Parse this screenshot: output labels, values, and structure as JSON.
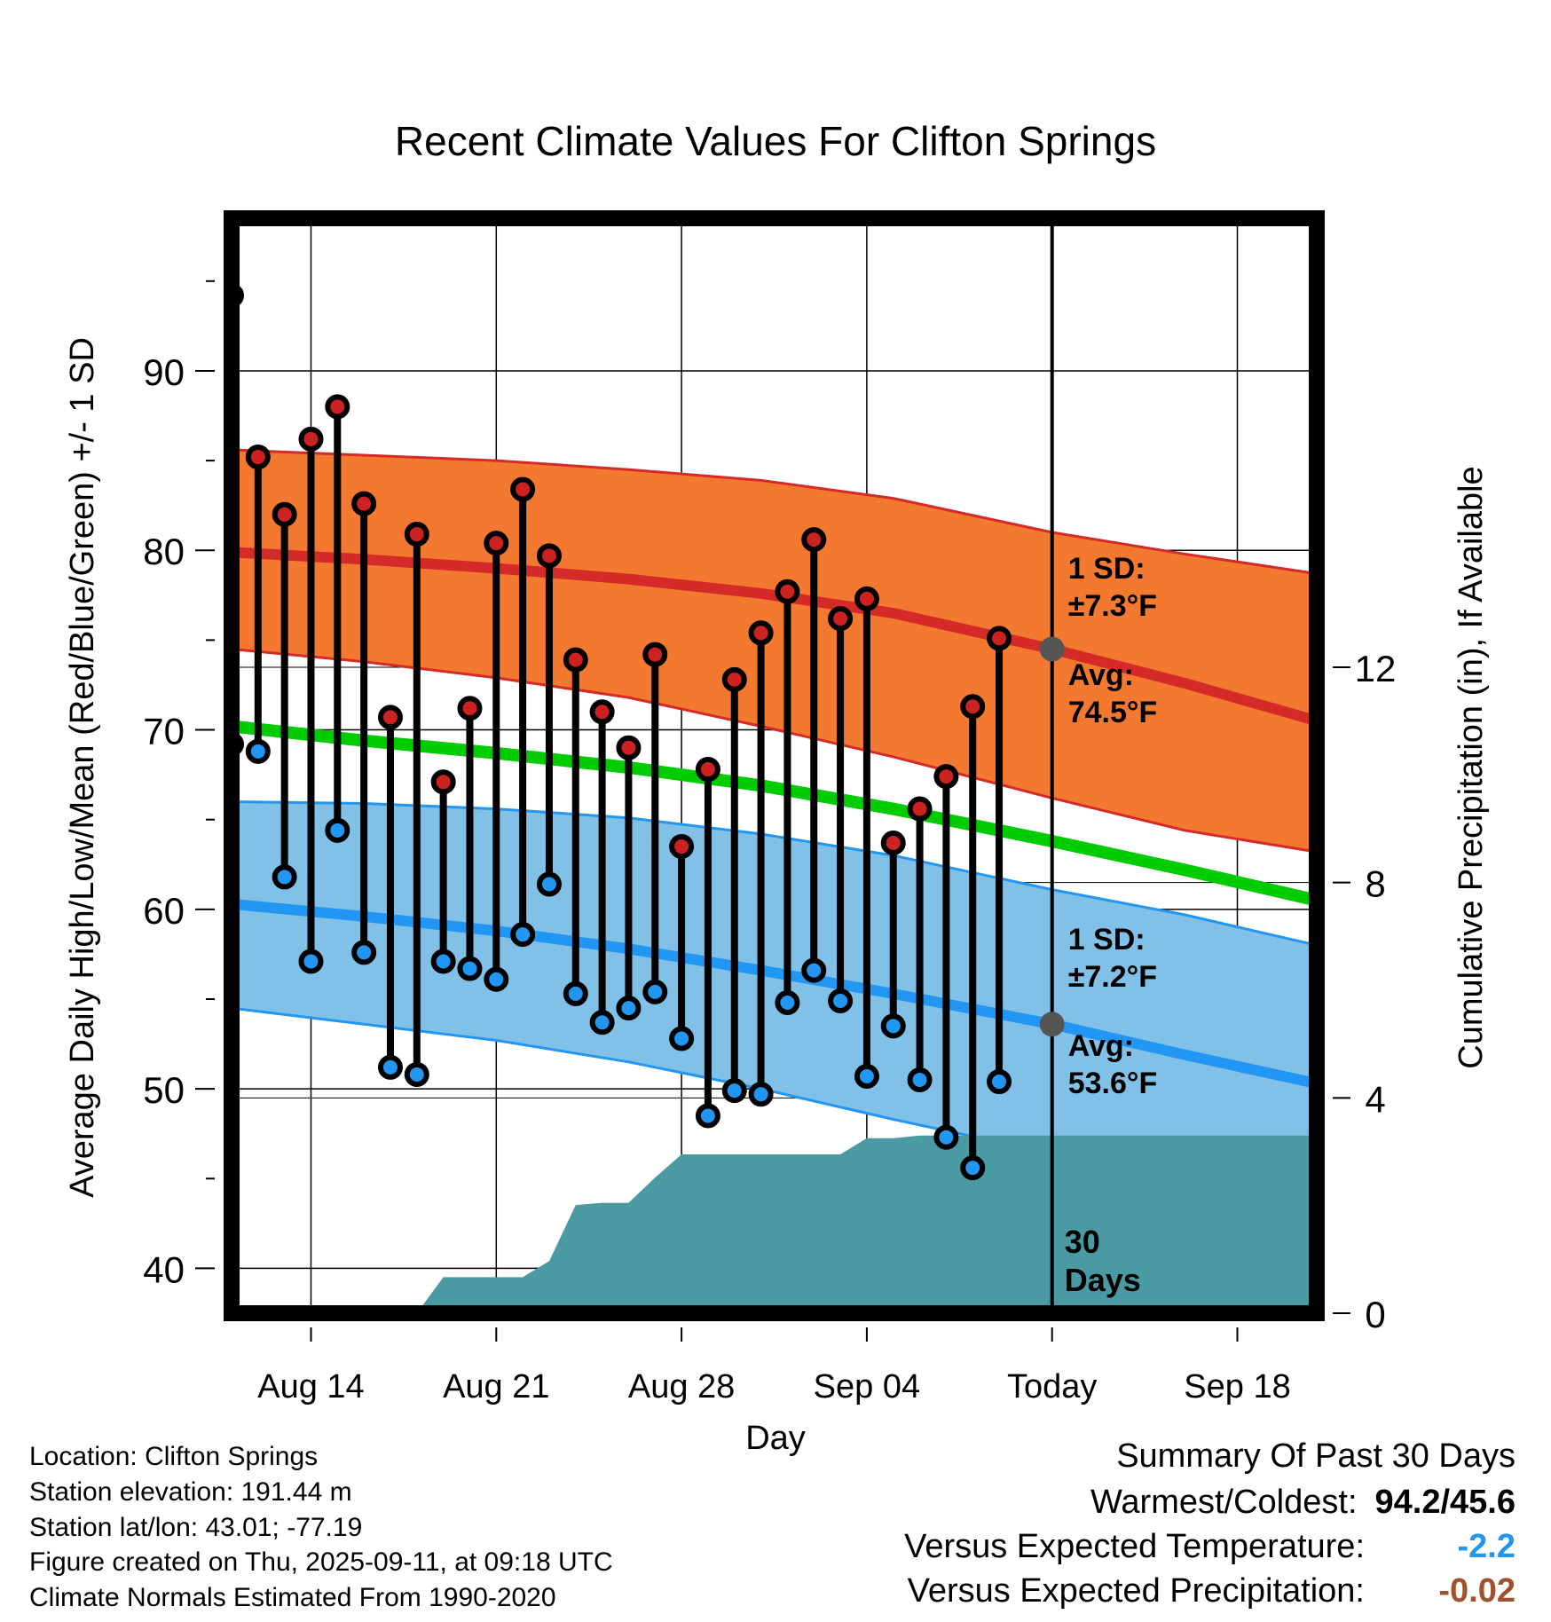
{
  "chart_data": {
    "type": "line",
    "title": "Recent Climate Values For Clifton Springs",
    "xlabel": "Day",
    "ylabel": "Average Daily High/Low/Mean (Red/Blue/Green) +/- 1 SD",
    "y2label": "Cumulative Precipitation (in), If Available",
    "ylim": [
      37.5,
      98.5
    ],
    "y2lim": [
      0,
      20.34
    ],
    "yticks": [
      "40",
      "50",
      "60",
      "70",
      "80",
      "90"
    ],
    "y2ticks": [
      "0",
      "4",
      "8",
      "12"
    ],
    "x_start": "2025-08-11",
    "x_end": "2025-09-21",
    "xticks": [
      {
        "date": "2025-08-14",
        "label": "Aug 14"
      },
      {
        "date": "2025-08-21",
        "label": "Aug 21"
      },
      {
        "date": "2025-08-28",
        "label": "Aug 28"
      },
      {
        "date": "2025-09-04",
        "label": "Sep 04"
      },
      {
        "date": "2025-09-11",
        "label": "Today"
      },
      {
        "date": "2025-09-18",
        "label": "Sep 18"
      }
    ],
    "today": "2025-09-11",
    "normals": {
      "dates": [
        "2025-08-11",
        "2025-08-16",
        "2025-08-21",
        "2025-08-26",
        "2025-08-31",
        "2025-09-05",
        "2025-09-11",
        "2025-09-16",
        "2025-09-21"
      ],
      "high_avg": [
        79.9,
        79.5,
        79.0,
        78.4,
        77.6,
        76.5,
        74.5,
        72.6,
        70.5
      ],
      "high_upper": [
        85.6,
        85.3,
        85.0,
        84.5,
        83.9,
        82.9,
        81.0,
        79.8,
        78.7
      ],
      "high_lower": [
        74.5,
        73.8,
        72.9,
        71.8,
        70.2,
        68.5,
        66.2,
        64.4,
        63.2
      ],
      "low_avg": [
        60.3,
        59.6,
        58.8,
        57.8,
        56.6,
        55.3,
        53.6,
        51.9,
        50.3
      ],
      "low_upper": [
        66.0,
        65.9,
        65.6,
        65.1,
        64.2,
        63.0,
        61.1,
        59.7,
        58.0
      ],
      "low_lower": [
        54.5,
        53.6,
        52.7,
        51.5,
        50.0,
        48.3,
        46.4,
        45.6,
        45.6
      ],
      "mean_avg": [
        70.2,
        69.4,
        68.7,
        67.9,
        66.9,
        65.6,
        63.8,
        62.2,
        60.5
      ]
    },
    "series": [
      {
        "name": "High",
        "color": "#cc2222",
        "values": [
          94.2,
          85.2,
          82.0,
          86.2,
          88.0,
          82.6,
          70.7,
          80.9,
          67.1,
          71.2,
          80.4,
          83.4,
          79.7,
          73.9,
          71.0,
          69.0,
          74.2,
          63.5,
          67.8,
          72.8,
          75.4,
          77.7,
          80.6,
          76.2,
          77.3,
          63.7,
          65.6,
          67.4,
          71.3,
          75.1
        ]
      },
      {
        "name": "Low",
        "color": "#2196f3",
        "values": [
          69.2,
          68.8,
          61.8,
          57.1,
          64.4,
          57.6,
          51.2,
          50.8,
          57.1,
          56.7,
          56.1,
          58.6,
          61.4,
          55.3,
          53.7,
          54.5,
          55.4,
          52.8,
          48.5,
          49.9,
          49.7,
          54.8,
          56.6,
          54.9,
          50.7,
          53.5,
          50.5,
          47.3,
          45.6,
          50.4
        ]
      }
    ],
    "dates": [
      "2025-08-11",
      "2025-08-12",
      "2025-08-13",
      "2025-08-14",
      "2025-08-15",
      "2025-08-16",
      "2025-08-17",
      "2025-08-18",
      "2025-08-19",
      "2025-08-20",
      "2025-08-21",
      "2025-08-22",
      "2025-08-23",
      "2025-08-24",
      "2025-08-25",
      "2025-08-26",
      "2025-08-27",
      "2025-08-28",
      "2025-08-29",
      "2025-08-30",
      "2025-08-31",
      "2025-09-01",
      "2025-09-02",
      "2025-09-03",
      "2025-09-04",
      "2025-09-05",
      "2025-09-06",
      "2025-09-07",
      "2025-09-08",
      "2025-09-09"
    ],
    "precip_cumulative": {
      "dates": [
        "2025-08-17",
        "2025-08-18",
        "2025-08-19",
        "2025-08-20",
        "2025-08-21",
        "2025-08-22",
        "2025-08-23",
        "2025-08-24",
        "2025-08-25",
        "2025-08-26",
        "2025-08-27",
        "2025-08-28",
        "2025-08-29",
        "2025-08-30",
        "2025-08-31",
        "2025-09-01",
        "2025-09-02",
        "2025-09-03",
        "2025-09-04",
        "2025-09-05",
        "2025-09-06",
        "2025-09-07",
        "2025-09-21"
      ],
      "values": [
        0.0,
        0.0,
        0.67,
        0.67,
        0.67,
        0.67,
        0.97,
        2.01,
        2.05,
        2.05,
        2.52,
        2.95,
        2.95,
        2.95,
        2.95,
        2.95,
        2.95,
        2.95,
        3.25,
        3.25,
        3.3,
        3.3,
        3.3
      ]
    },
    "annotations": {
      "high_sd": "±7.3°F",
      "high_avg": "74.5°F",
      "low_sd": "±7.2°F",
      "low_avg": "53.6°F",
      "sd_label": "1 SD:",
      "avg_label": "Avg:",
      "days_num": "30",
      "days_word": "Days"
    },
    "colors": {
      "high_band": "#f47930",
      "high_line": "#d42a28",
      "low_band": "#82c1e7",
      "low_line": "#2196f3",
      "mean_line": "#00cc00",
      "precip": "#4a9aa4",
      "annotation": "#555555"
    }
  },
  "info": {
    "location": "Location: Clifton Springs",
    "elevation": "Station elevation: 191.44 m",
    "latlon": "Station lat/lon: 43.01; -77.19",
    "created": "Figure created on Thu, 2025-09-11, at 09:18 UTC",
    "normals": "Climate Normals Estimated From 1990-2020"
  },
  "summary": {
    "title": "Summary Of Past 30 Days",
    "warm_label": "Warmest/Coldest:",
    "warm_value": "94.2/45.6",
    "temp_label": "Versus Expected Temperature:",
    "temp_value": "-2.2",
    "temp_color": "#2196f3",
    "precip_label": "Versus Expected Precipitation:",
    "precip_value": "-0.02",
    "precip_color": "#a0522d"
  }
}
